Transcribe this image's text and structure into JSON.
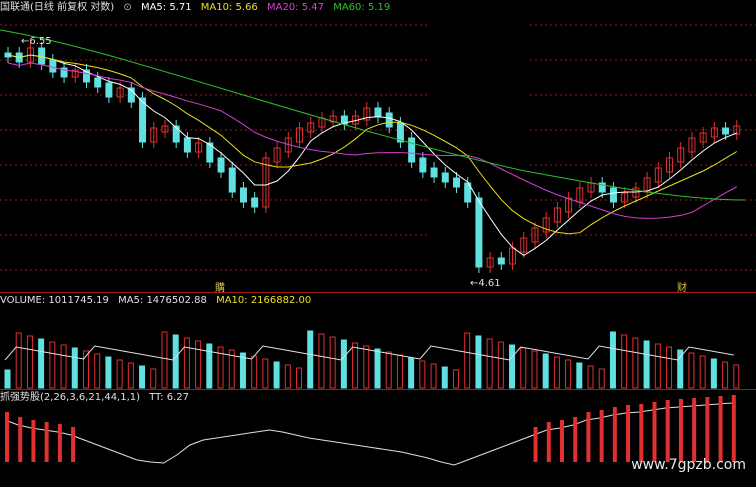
{
  "main_chart": {
    "stock_name": "国联通(日线 前复权 对数)",
    "indicators": [
      {
        "label": "MA5: 5.71",
        "color": "#ffffff"
      },
      {
        "label": "MA10: 5.66",
        "color": "#e8e020"
      },
      {
        "label": "MA20: 5.47",
        "color": "#d040d0"
      },
      {
        "label": "MA60: 5.19",
        "color": "#30c030"
      }
    ],
    "high_marker": "6.55",
    "low_marker": "4.61",
    "event_markers": [
      "購",
      "财"
    ]
  },
  "volume_panel": {
    "label_volume": "VOLUME: 1011745.19",
    "label_ma5": "MA5: 1476502.88",
    "label_ma10": "MA10: 2166882.00"
  },
  "indicator_panel": {
    "name": "抓强势股(2,26,3,6,21,44,1,1)",
    "tt": "TT: 6.27"
  },
  "watermark": "www.7gpzb.com",
  "colors": {
    "up": "#e03030",
    "down": "#60e0e0",
    "grid": "#a01818",
    "ma5": "#ffffff",
    "ma10": "#e8e020",
    "ma20": "#d040d0",
    "ma60": "#30c030"
  }
}
